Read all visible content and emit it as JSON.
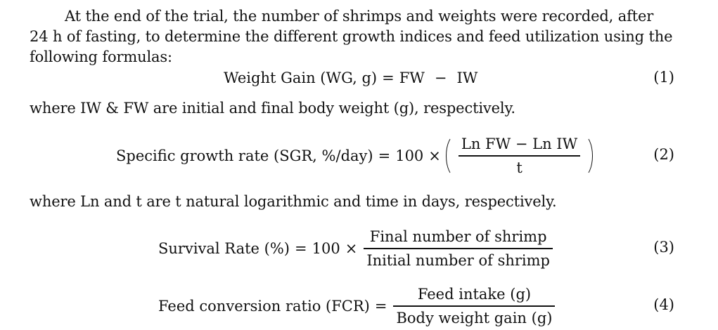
{
  "paragraphs": {
    "p1": "At the end of the trial, the number of shrimps and weights were recorded, after 24 h of fasting, to determine the different growth indices and feed utilization using the following formulas:",
    "p2": "where IW & FW are initial and final body weight (g), respectively.",
    "p3": "where Ln and t are t natural logarithmic and time in days, respectively."
  },
  "equations": {
    "eq1": {
      "lhs": "Weight Gain (WG, g)",
      "equals": "=",
      "term_a": "FW",
      "minus": "−",
      "term_b": "IW",
      "number": "(1)"
    },
    "eq2": {
      "lhs": "Specific growth rate (SGR, %/day)",
      "equals": "=",
      "factor": "100",
      "times": "×",
      "numerator": "Ln FW − Ln IW",
      "denominator": "t",
      "number": "(2)"
    },
    "eq3": {
      "lhs": "Survival Rate (%)",
      "equals": "=",
      "factor": "100",
      "times": "×",
      "numerator": "Final number of shrimp",
      "denominator": "Initial number of shrimp",
      "number": "(3)"
    },
    "eq4": {
      "lhs": "Feed conversion ratio (FCR)",
      "equals": "=",
      "numerator": "Feed intake (g)",
      "denominator": "Body weight gain (g)",
      "number": "(4)"
    }
  }
}
